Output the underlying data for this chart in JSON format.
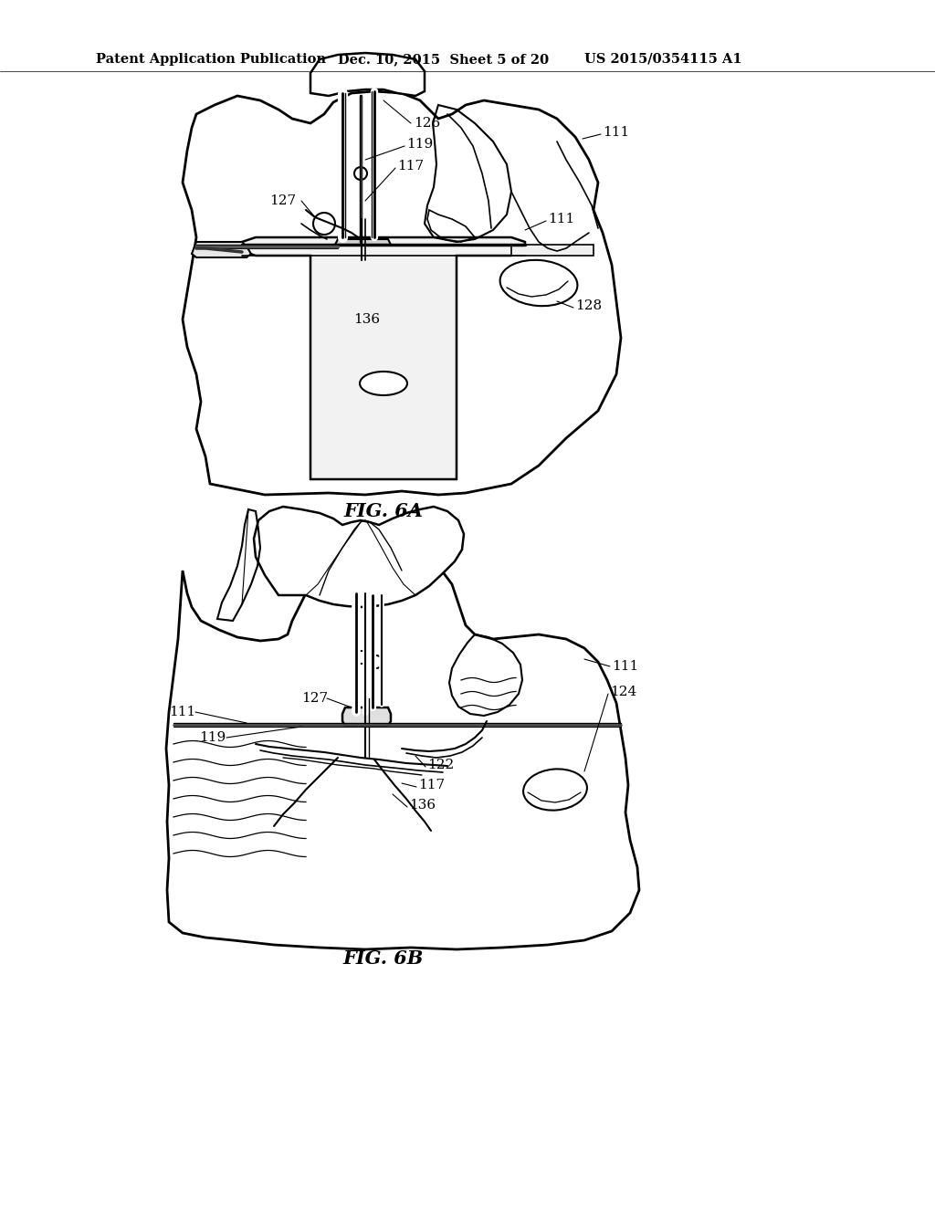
{
  "background_color": "#ffffff",
  "header_left": "Patent Application Publication",
  "header_mid": "Dec. 10, 2015  Sheet 5 of 20",
  "header_right": "US 2015/0354115 A1",
  "fig_label_A": "FIG. 6A",
  "fig_label_B": "FIG. 6B",
  "text_color": "#000000",
  "line_color": "#000000",
  "header_fontsize": 10.5,
  "fig_label_fontsize": 15,
  "label_fontsize": 11
}
